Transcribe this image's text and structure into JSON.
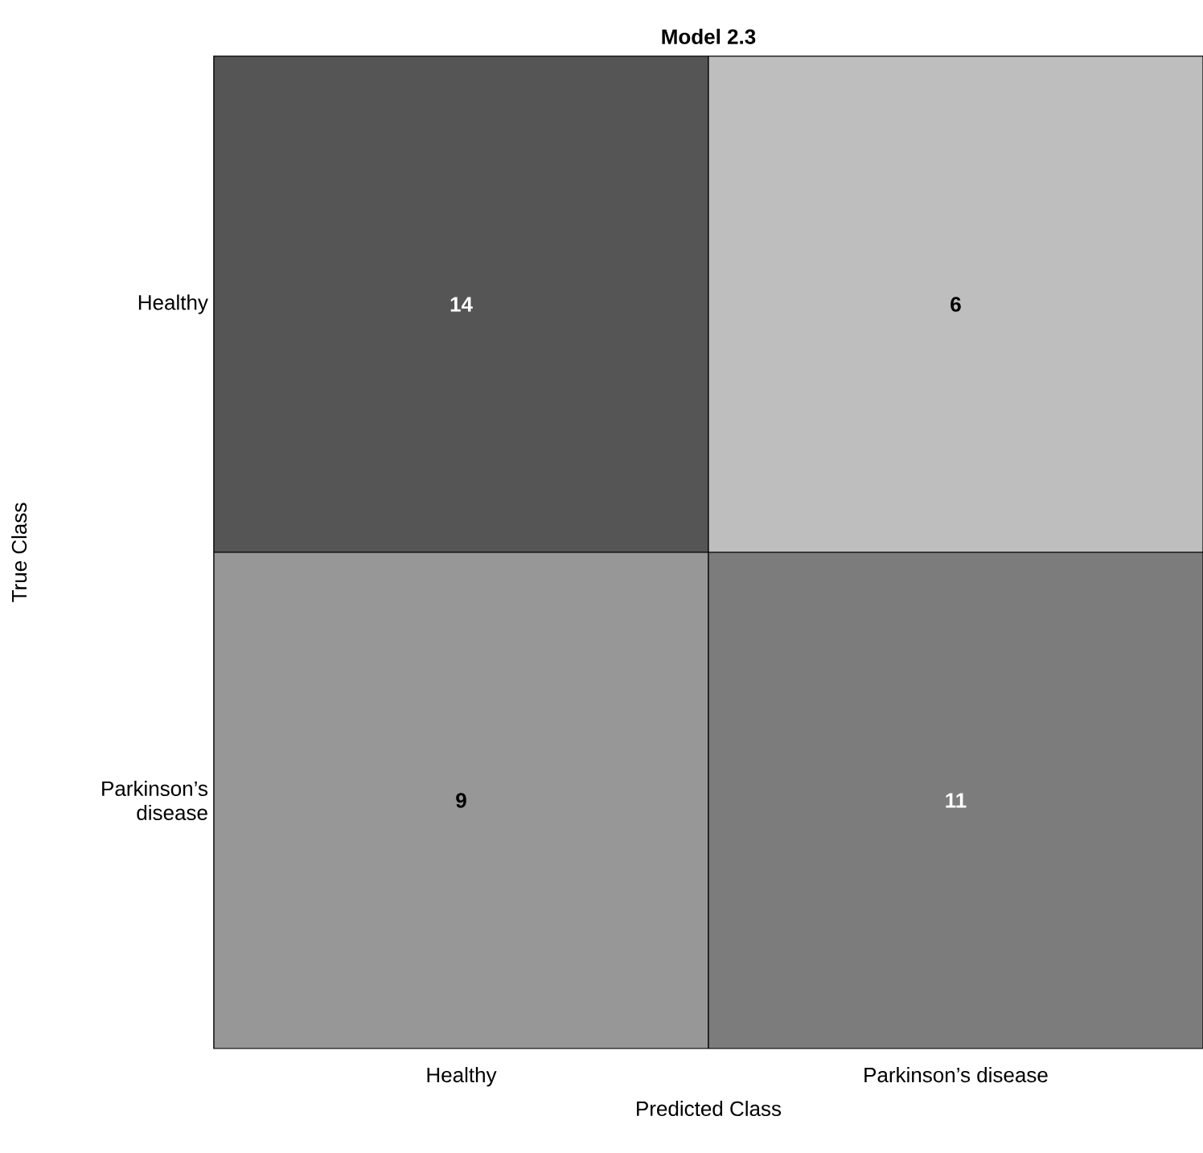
{
  "chart_data": {
    "type": "heatmap",
    "title": "Model 2.3",
    "xlabel": "Predicted Class",
    "ylabel": "True Class",
    "categories": [
      "Healthy",
      "Parkinson’s disease"
    ],
    "y_categories": [
      "Healthy",
      "Parkinson’s disease"
    ],
    "cells": [
      [
        14,
        6
      ],
      [
        9,
        11
      ]
    ],
    "data_labels": true
  }
}
